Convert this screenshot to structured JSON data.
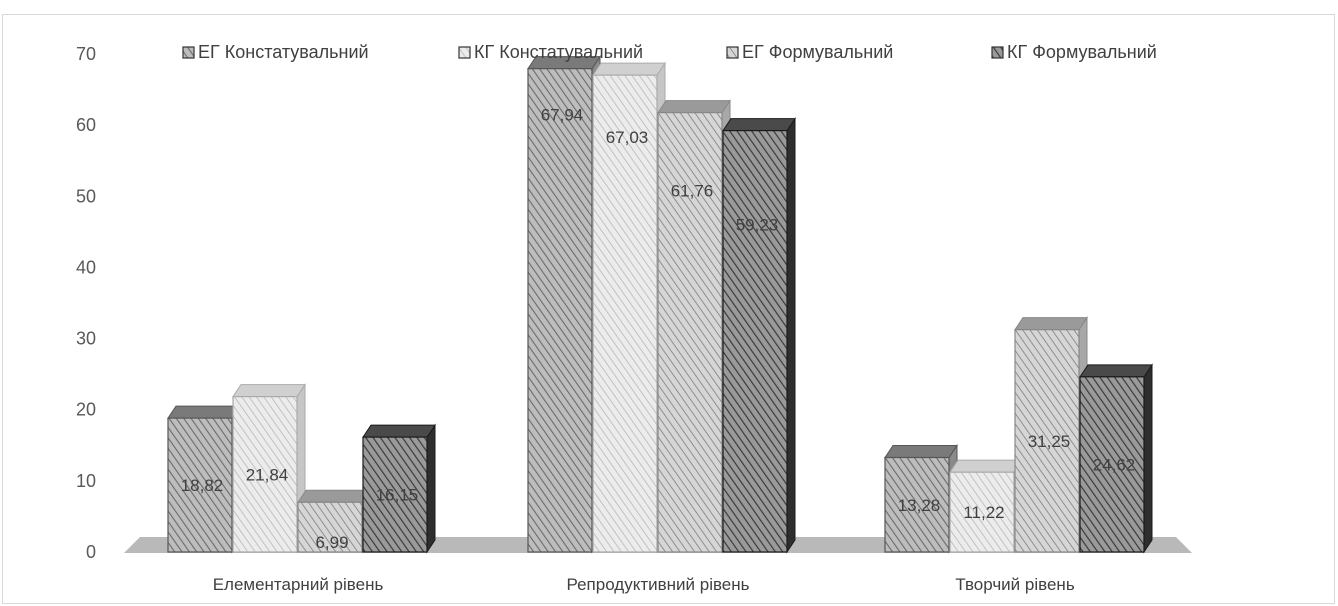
{
  "chart_data": {
    "type": "bar",
    "categories": [
      "Елементарний рівень",
      "Репродуктивний рівень",
      "Творчий рівень"
    ],
    "series": [
      {
        "name": "ЕГ Констатувальний",
        "values": [
          18.82,
          67.94,
          13.28
        ],
        "labels": [
          "18,82",
          "67,94",
          "13,28"
        ]
      },
      {
        "name": "КГ Констатувальний",
        "values": [
          21.84,
          67.03,
          11.22
        ],
        "labels": [
          "21,84",
          "67,03",
          "11,22"
        ]
      },
      {
        "name": "ЕГ Формувальний",
        "values": [
          6.99,
          61.76,
          31.25
        ],
        "labels": [
          "6,99",
          "61,76",
          "31,25"
        ]
      },
      {
        "name": "КГ Формувальний",
        "values": [
          16.15,
          59.23,
          24.62
        ],
        "labels": [
          "16,15",
          "59,23",
          "24,62"
        ]
      }
    ],
    "yticks": [
      "0",
      "10",
      "20",
      "30",
      "40",
      "50",
      "60",
      "70"
    ],
    "ylim": [
      0,
      70
    ],
    "grid": false,
    "legend": "top",
    "style": "3d-column-hatched-grayscale"
  }
}
